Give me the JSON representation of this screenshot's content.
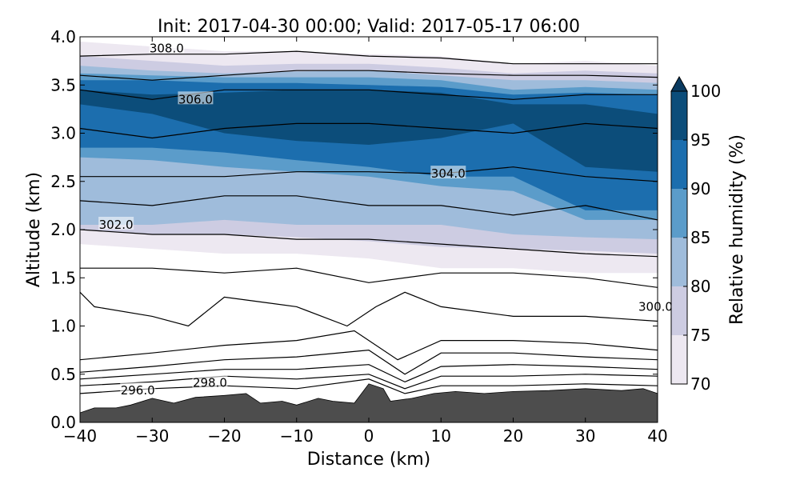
{
  "chart_data": {
    "type": "heatmap",
    "title": "Init: 2017-04-30 00:00; Valid: 2017-05-17 06:00",
    "xlabel": "Distance (km)",
    "ylabel": "Altitude (km)",
    "xlim": [
      -40,
      40
    ],
    "ylim": [
      0.0,
      4.0
    ],
    "xticks": [
      -40,
      -30,
      -20,
      -10,
      0,
      10,
      20,
      30,
      40
    ],
    "xtick_labels": [
      "−40",
      "−30",
      "−20",
      "−10",
      "0",
      "10",
      "20",
      "30",
      "40"
    ],
    "yticks": [
      0.0,
      0.5,
      1.0,
      1.5,
      2.0,
      2.5,
      3.0,
      3.5,
      4.0
    ],
    "ytick_labels": [
      "0.0",
      "0.5",
      "1.0",
      "1.5",
      "2.0",
      "2.5",
      "3.0",
      "3.5",
      "4.0"
    ],
    "colorbar": {
      "label": "Relative humidity (%)",
      "levels": [
        70,
        75,
        80,
        85,
        90,
        95,
        100
      ],
      "tick_labels": [
        "70",
        "75",
        "80",
        "85",
        "90",
        "95",
        "100"
      ],
      "colors": [
        "#ede8f1",
        "#cdcce2",
        "#9fbcdb",
        "#5b9cca",
        "#1c6eae",
        "#0c4d7a"
      ],
      "extend": "max",
      "extend_color": "#0a3a60"
    },
    "filled_layers": [
      {
        "level": 70,
        "color": "#ede8f1",
        "top": [
          [
            -40,
            3.95
          ],
          [
            -30,
            3.9
          ],
          [
            -20,
            3.85
          ],
          [
            -10,
            3.85
          ],
          [
            0,
            3.82
          ],
          [
            10,
            3.8
          ],
          [
            20,
            3.72
          ],
          [
            30,
            3.75
          ],
          [
            40,
            3.7
          ]
        ],
        "bottom": [
          [
            -40,
            1.85
          ],
          [
            -30,
            1.8
          ],
          [
            -20,
            1.75
          ],
          [
            -10,
            1.75
          ],
          [
            0,
            1.7
          ],
          [
            10,
            1.6
          ],
          [
            20,
            1.6
          ],
          [
            30,
            1.55
          ],
          [
            40,
            1.55
          ]
        ]
      },
      {
        "level": 75,
        "color": "#cdcce2",
        "top": [
          [
            -40,
            3.8
          ],
          [
            -30,
            3.75
          ],
          [
            -20,
            3.7
          ],
          [
            -10,
            3.72
          ],
          [
            0,
            3.72
          ],
          [
            10,
            3.68
          ],
          [
            20,
            3.62
          ],
          [
            30,
            3.65
          ],
          [
            40,
            3.62
          ]
        ],
        "bottom": [
          [
            -40,
            2.0
          ],
          [
            -30,
            1.95
          ],
          [
            -20,
            1.95
          ],
          [
            -10,
            1.92
          ],
          [
            0,
            1.88
          ],
          [
            10,
            1.82
          ],
          [
            20,
            1.8
          ],
          [
            30,
            1.78
          ],
          [
            40,
            1.75
          ]
        ]
      },
      {
        "level": 80,
        "color": "#9fbcdb",
        "top": [
          [
            -40,
            3.7
          ],
          [
            -30,
            3.65
          ],
          [
            -20,
            3.62
          ],
          [
            -10,
            3.64
          ],
          [
            0,
            3.65
          ],
          [
            10,
            3.6
          ],
          [
            20,
            3.55
          ],
          [
            30,
            3.55
          ],
          [
            40,
            3.52
          ]
        ],
        "bottom": [
          [
            -40,
            2.05
          ],
          [
            -30,
            2.05
          ],
          [
            -20,
            2.1
          ],
          [
            -10,
            2.05
          ],
          [
            0,
            2.05
          ],
          [
            10,
            2.05
          ],
          [
            20,
            1.95
          ],
          [
            30,
            1.92
          ],
          [
            40,
            1.9
          ]
        ]
      },
      {
        "level": 85,
        "color": "#5b9cca",
        "top": [
          [
            -40,
            3.62
          ],
          [
            -30,
            3.6
          ],
          [
            -20,
            3.58
          ],
          [
            -10,
            3.58
          ],
          [
            0,
            3.58
          ],
          [
            10,
            3.55
          ],
          [
            20,
            3.45
          ],
          [
            30,
            3.48
          ],
          [
            40,
            3.45
          ]
        ],
        "bottom": [
          [
            -40,
            2.75
          ],
          [
            -30,
            2.72
          ],
          [
            -20,
            2.65
          ],
          [
            -10,
            2.6
          ],
          [
            0,
            2.55
          ],
          [
            10,
            2.45
          ],
          [
            20,
            2.4
          ],
          [
            30,
            2.1
          ],
          [
            40,
            2.1
          ]
        ]
      },
      {
        "level": 90,
        "color": "#1c6eae",
        "top": [
          [
            -40,
            3.55
          ],
          [
            -30,
            3.55
          ],
          [
            -20,
            3.52
          ],
          [
            -10,
            3.52
          ],
          [
            0,
            3.5
          ],
          [
            10,
            3.48
          ],
          [
            20,
            3.4
          ],
          [
            30,
            3.42
          ],
          [
            40,
            3.4
          ]
        ],
        "bottom": [
          [
            -40,
            2.85
          ],
          [
            -30,
            2.85
          ],
          [
            -20,
            2.8
          ],
          [
            -10,
            2.72
          ],
          [
            0,
            2.65
          ],
          [
            10,
            2.55
          ],
          [
            20,
            2.55
          ],
          [
            30,
            2.2
          ],
          [
            40,
            2.2
          ]
        ]
      },
      {
        "level": 95,
        "color": "#0c4d7a",
        "top": [
          [
            -40,
            3.45
          ],
          [
            -30,
            3.4
          ],
          [
            -20,
            3.42
          ],
          [
            -10,
            3.45
          ],
          [
            0,
            3.45
          ],
          [
            10,
            3.42
          ],
          [
            20,
            3.3
          ],
          [
            30,
            3.3
          ],
          [
            40,
            3.2
          ]
        ],
        "bottom": [
          [
            -40,
            3.3
          ],
          [
            -30,
            3.2
          ],
          [
            -20,
            3.0
          ],
          [
            -10,
            2.92
          ],
          [
            0,
            2.88
          ],
          [
            10,
            2.95
          ],
          [
            20,
            3.1
          ],
          [
            30,
            2.65
          ],
          [
            40,
            2.6
          ]
        ]
      }
    ],
    "terrain": {
      "color": "#4d4d4d",
      "profile": [
        [
          -40,
          0.1
        ],
        [
          -38,
          0.15
        ],
        [
          -35,
          0.15
        ],
        [
          -33,
          0.18
        ],
        [
          -30,
          0.25
        ],
        [
          -27,
          0.2
        ],
        [
          -24,
          0.26
        ],
        [
          -20,
          0.28
        ],
        [
          -17,
          0.3
        ],
        [
          -15,
          0.2
        ],
        [
          -12,
          0.22
        ],
        [
          -10,
          0.18
        ],
        [
          -7,
          0.25
        ],
        [
          -5,
          0.22
        ],
        [
          -2,
          0.2
        ],
        [
          0,
          0.4
        ],
        [
          2,
          0.35
        ],
        [
          3,
          0.22
        ],
        [
          6,
          0.25
        ],
        [
          9,
          0.3
        ],
        [
          12,
          0.32
        ],
        [
          16,
          0.3
        ],
        [
          20,
          0.32
        ],
        [
          25,
          0.33
        ],
        [
          30,
          0.35
        ],
        [
          35,
          0.33
        ],
        [
          38,
          0.35
        ],
        [
          40,
          0.3
        ]
      ]
    },
    "isentropes": [
      {
        "value": 296.0,
        "label": "296.0",
        "label_at": [
          -32,
          0.33
        ],
        "points": [
          [
            -40,
            0.3
          ],
          [
            -30,
            0.35
          ],
          [
            -20,
            0.38
          ],
          [
            -10,
            0.35
          ],
          [
            0,
            0.45
          ],
          [
            5,
            0.3
          ],
          [
            10,
            0.38
          ],
          [
            20,
            0.38
          ],
          [
            30,
            0.4
          ],
          [
            40,
            0.38
          ]
        ]
      },
      {
        "value": 296.5,
        "label": "",
        "points": [
          [
            -40,
            0.38
          ],
          [
            -30,
            0.42
          ],
          [
            -20,
            0.48
          ],
          [
            -10,
            0.45
          ],
          [
            0,
            0.5
          ],
          [
            5,
            0.35
          ],
          [
            10,
            0.48
          ],
          [
            20,
            0.48
          ],
          [
            30,
            0.5
          ],
          [
            40,
            0.48
          ]
        ]
      },
      {
        "value": 297.0,
        "label": "",
        "points": [
          [
            -40,
            0.45
          ],
          [
            -30,
            0.5
          ],
          [
            -20,
            0.55
          ],
          [
            -10,
            0.55
          ],
          [
            0,
            0.6
          ],
          [
            5,
            0.42
          ],
          [
            10,
            0.58
          ],
          [
            20,
            0.6
          ],
          [
            30,
            0.58
          ],
          [
            40,
            0.55
          ]
        ]
      },
      {
        "value": 297.5,
        "label": "",
        "points": [
          [
            -40,
            0.52
          ],
          [
            -30,
            0.58
          ],
          [
            -20,
            0.65
          ],
          [
            -10,
            0.68
          ],
          [
            0,
            0.75
          ],
          [
            5,
            0.5
          ],
          [
            10,
            0.72
          ],
          [
            20,
            0.72
          ],
          [
            30,
            0.68
          ],
          [
            40,
            0.65
          ]
        ]
      },
      {
        "value": 298.0,
        "label": "298.0",
        "label_at": [
          -22,
          0.41
        ],
        "points": [
          [
            -40,
            0.65
          ],
          [
            -30,
            0.72
          ],
          [
            -20,
            0.8
          ],
          [
            -10,
            0.85
          ],
          [
            -2,
            0.95
          ],
          [
            4,
            0.65
          ],
          [
            10,
            0.85
          ],
          [
            20,
            0.85
          ],
          [
            30,
            0.82
          ],
          [
            40,
            0.75
          ]
        ]
      },
      {
        "value": 299.0,
        "label": "",
        "points": [
          [
            -40,
            1.35
          ],
          [
            -38,
            1.2
          ],
          [
            -30,
            1.1
          ],
          [
            -25,
            1.0
          ],
          [
            -20,
            1.3
          ],
          [
            -15,
            1.25
          ],
          [
            -10,
            1.2
          ],
          [
            -3,
            1.0
          ],
          [
            1,
            1.2
          ],
          [
            5,
            1.35
          ],
          [
            10,
            1.2
          ],
          [
            20,
            1.1
          ],
          [
            30,
            1.1
          ],
          [
            40,
            1.05
          ]
        ]
      },
      {
        "value": 300.0,
        "label": "300.0",
        "label_at": [
          38,
          1.2
        ],
        "points": [
          [
            -40,
            1.6
          ],
          [
            -30,
            1.6
          ],
          [
            -20,
            1.55
          ],
          [
            -10,
            1.6
          ],
          [
            0,
            1.45
          ],
          [
            10,
            1.55
          ],
          [
            20,
            1.55
          ],
          [
            30,
            1.5
          ],
          [
            40,
            1.4
          ]
        ]
      },
      {
        "value": 301.0,
        "label": "",
        "points": [
          [
            -40,
            2.0
          ],
          [
            -30,
            1.95
          ],
          [
            -20,
            1.95
          ],
          [
            -10,
            1.9
          ],
          [
            0,
            1.9
          ],
          [
            10,
            1.85
          ],
          [
            20,
            1.8
          ],
          [
            30,
            1.75
          ],
          [
            40,
            1.72
          ]
        ]
      },
      {
        "value": 302.0,
        "label": "302.0",
        "label_at": [
          -35,
          2.05
        ],
        "points": [
          [
            -40,
            2.3
          ],
          [
            -30,
            2.25
          ],
          [
            -20,
            2.35
          ],
          [
            -10,
            2.35
          ],
          [
            0,
            2.25
          ],
          [
            10,
            2.25
          ],
          [
            20,
            2.15
          ],
          [
            30,
            2.25
          ],
          [
            40,
            2.1
          ]
        ]
      },
      {
        "value": 304.0,
        "label": "304.0",
        "label_at": [
          11,
          2.58
        ],
        "points": [
          [
            -40,
            2.55
          ],
          [
            -30,
            2.55
          ],
          [
            -20,
            2.55
          ],
          [
            -10,
            2.6
          ],
          [
            0,
            2.6
          ],
          [
            10,
            2.58
          ],
          [
            20,
            2.65
          ],
          [
            30,
            2.55
          ],
          [
            40,
            2.5
          ]
        ]
      },
      {
        "value": 305.0,
        "label": "",
        "points": [
          [
            -40,
            3.05
          ],
          [
            -30,
            2.95
          ],
          [
            -20,
            3.05
          ],
          [
            -10,
            3.1
          ],
          [
            0,
            3.1
          ],
          [
            10,
            3.05
          ],
          [
            20,
            3.0
          ],
          [
            30,
            3.1
          ],
          [
            40,
            3.05
          ]
        ]
      },
      {
        "value": 306.0,
        "label": "306.0",
        "label_at": [
          -24,
          3.35
        ],
        "points": [
          [
            -40,
            3.45
          ],
          [
            -30,
            3.35
          ],
          [
            -20,
            3.45
          ],
          [
            -10,
            3.45
          ],
          [
            0,
            3.45
          ],
          [
            10,
            3.4
          ],
          [
            20,
            3.35
          ],
          [
            30,
            3.4
          ],
          [
            40,
            3.4
          ]
        ]
      },
      {
        "value": 307.0,
        "label": "",
        "points": [
          [
            -40,
            3.6
          ],
          [
            -30,
            3.55
          ],
          [
            -20,
            3.6
          ],
          [
            -10,
            3.65
          ],
          [
            0,
            3.65
          ],
          [
            10,
            3.62
          ],
          [
            20,
            3.6
          ],
          [
            30,
            3.6
          ],
          [
            40,
            3.58
          ]
        ]
      },
      {
        "value": 308.0,
        "label": "308.0",
        "label_at": [
          -28,
          3.88
        ],
        "points": [
          [
            -40,
            3.8
          ],
          [
            -30,
            3.82
          ],
          [
            -20,
            3.82
          ],
          [
            -10,
            3.85
          ],
          [
            0,
            3.8
          ],
          [
            10,
            3.78
          ],
          [
            20,
            3.72
          ],
          [
            30,
            3.72
          ],
          [
            40,
            3.72
          ]
        ]
      }
    ]
  }
}
